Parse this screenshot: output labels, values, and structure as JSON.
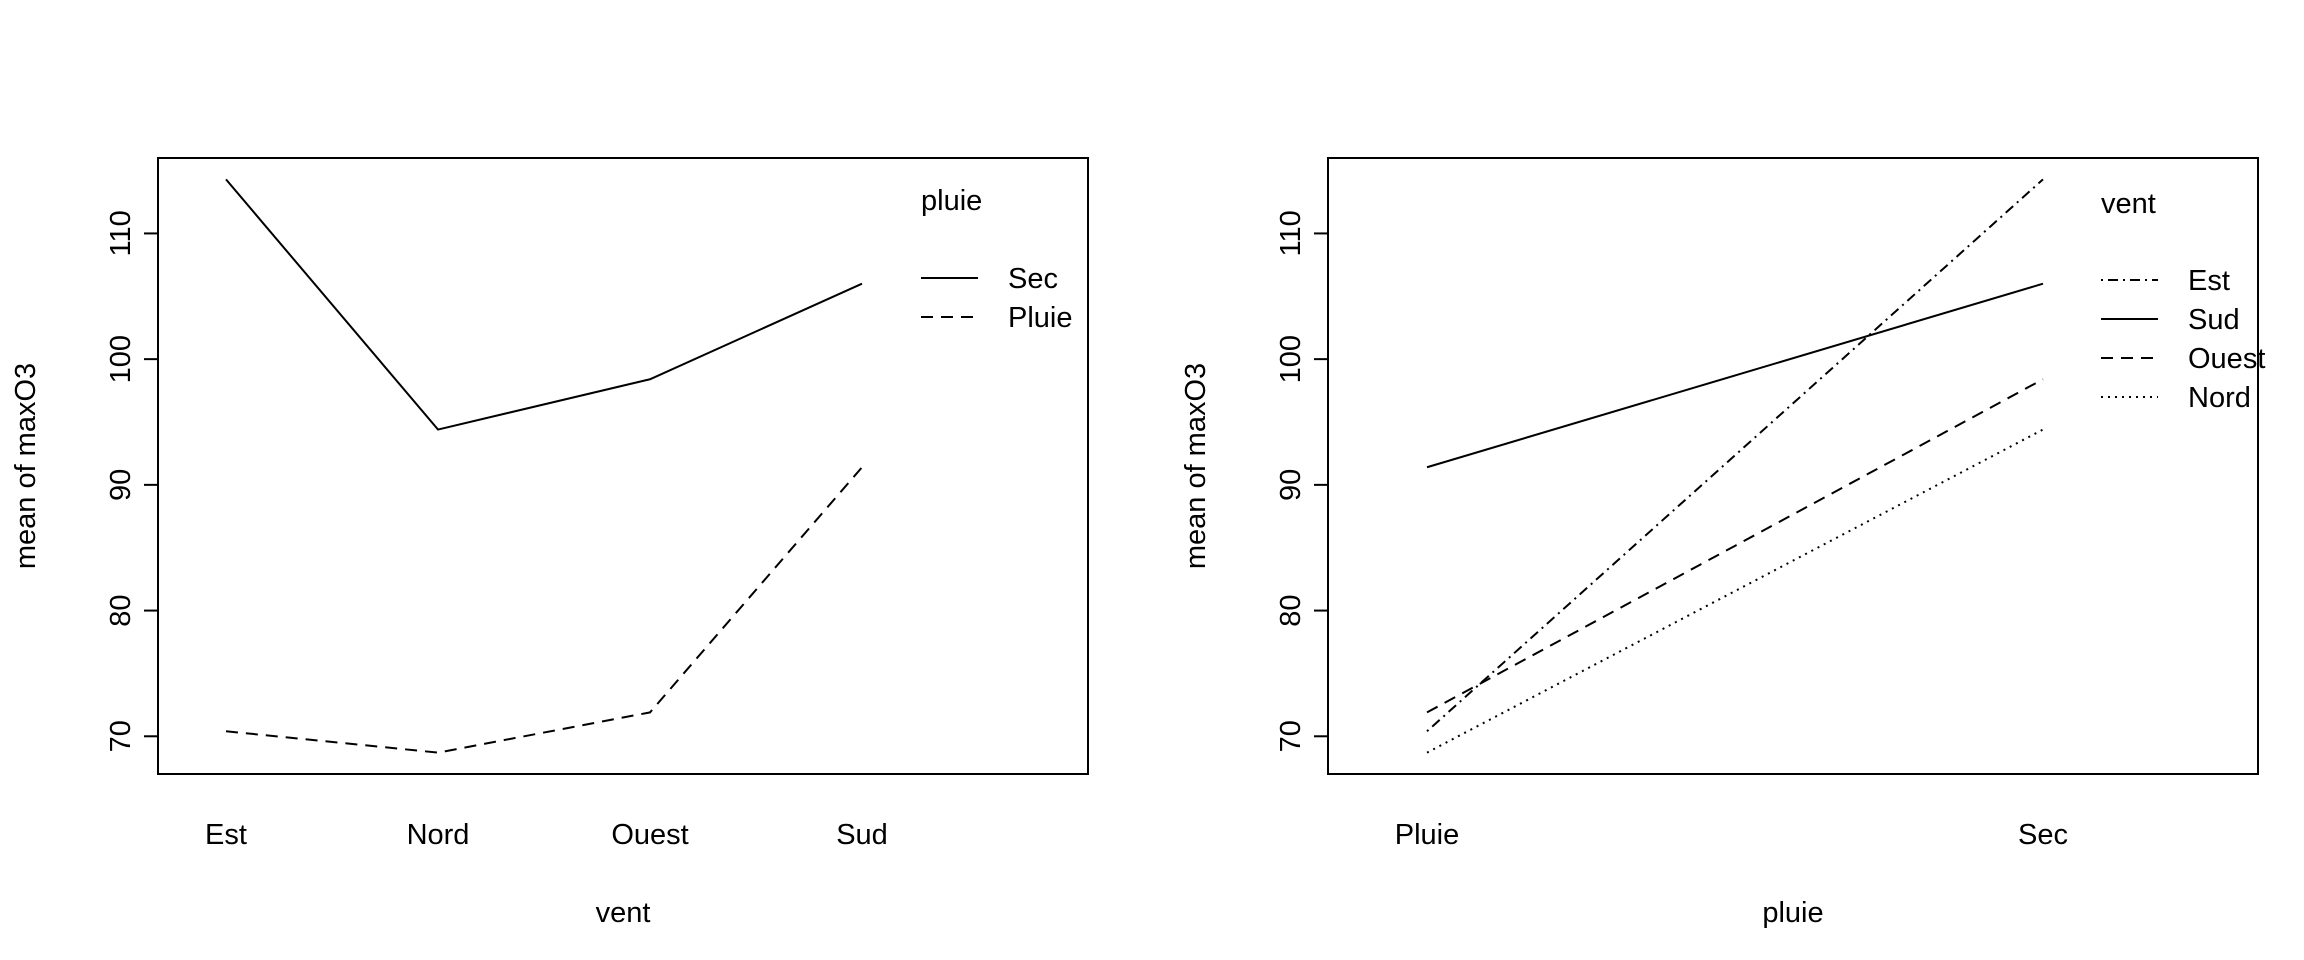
{
  "chart_data": [
    {
      "type": "line",
      "xlabel": "vent",
      "ylabel": "mean of  maxO3",
      "categories": [
        "Est",
        "Nord",
        "Ouest",
        "Sud"
      ],
      "ylim": [
        67,
        116
      ],
      "yticks": [
        70,
        80,
        90,
        100,
        110
      ],
      "grid": false,
      "legend": {
        "title": "pluie",
        "placement": "top-right"
      },
      "series": [
        {
          "name": "Sec",
          "values": [
            114.3,
            94.4,
            98.4,
            106.0
          ],
          "line_style": "solid"
        },
        {
          "name": "Pluie",
          "values": [
            70.4,
            68.7,
            71.9,
            91.4
          ],
          "line_style": "dashed"
        }
      ]
    },
    {
      "type": "line",
      "xlabel": "pluie",
      "ylabel": "mean of  maxO3",
      "categories": [
        "Pluie",
        "Sec"
      ],
      "ylim": [
        67,
        116
      ],
      "yticks": [
        70,
        80,
        90,
        100,
        110
      ],
      "grid": false,
      "legend": {
        "title": "vent",
        "placement": "top-right"
      },
      "series": [
        {
          "name": "Est",
          "values": [
            70.4,
            114.3
          ],
          "line_style": "dotdash"
        },
        {
          "name": "Sud",
          "values": [
            91.4,
            106.0
          ],
          "line_style": "solid"
        },
        {
          "name": "Ouest",
          "values": [
            71.9,
            98.4
          ],
          "line_style": "dashed"
        },
        {
          "name": "Nord",
          "values": [
            68.7,
            94.4
          ],
          "line_style": "dotted"
        }
      ]
    }
  ]
}
